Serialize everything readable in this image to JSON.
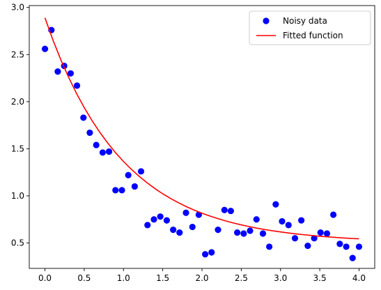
{
  "chart_data": {
    "type": "scatter",
    "title": "",
    "xlabel": "",
    "ylabel": "",
    "xlim": [
      -0.2,
      4.2
    ],
    "ylim": [
      0.23,
      3.02
    ],
    "xticks": [
      0.0,
      0.5,
      1.0,
      1.5,
      2.0,
      2.5,
      3.0,
      3.5,
      4.0
    ],
    "xtick_labels": [
      "0.0",
      "0.5",
      "1.0",
      "1.5",
      "2.0",
      "2.5",
      "3.0",
      "3.5",
      "4.0"
    ],
    "yticks": [
      0.5,
      1.0,
      1.5,
      2.0,
      2.5,
      3.0
    ],
    "ytick_labels": [
      "0.5",
      "1.0",
      "1.5",
      "2.0",
      "2.5",
      "3.0"
    ],
    "grid": false,
    "legend": "top-right",
    "series": [
      {
        "name": "Noisy data",
        "kind": "scatter",
        "color": "#0000ff",
        "x": [
          0.0,
          0.082,
          0.163,
          0.245,
          0.327,
          0.408,
          0.49,
          0.571,
          0.653,
          0.735,
          0.816,
          0.898,
          0.98,
          1.061,
          1.143,
          1.224,
          1.306,
          1.388,
          1.469,
          1.551,
          1.633,
          1.714,
          1.796,
          1.878,
          1.959,
          2.041,
          2.122,
          2.204,
          2.286,
          2.367,
          2.449,
          2.531,
          2.612,
          2.694,
          2.776,
          2.857,
          2.939,
          3.02,
          3.102,
          3.184,
          3.265,
          3.347,
          3.429,
          3.51,
          3.592,
          3.673,
          3.755,
          3.837,
          3.918,
          4.0
        ],
        "y": [
          2.56,
          2.76,
          2.32,
          2.38,
          2.3,
          2.17,
          1.83,
          1.67,
          1.54,
          1.46,
          1.47,
          1.06,
          1.06,
          1.22,
          1.1,
          1.26,
          0.69,
          0.75,
          0.78,
          0.74,
          0.64,
          0.61,
          0.82,
          0.67,
          0.8,
          0.38,
          0.4,
          0.64,
          0.85,
          0.84,
          0.61,
          0.6,
          0.63,
          0.75,
          0.6,
          0.46,
          0.91,
          0.73,
          0.69,
          0.55,
          0.74,
          0.47,
          0.55,
          0.61,
          0.6,
          0.8,
          0.49,
          0.46,
          0.34,
          0.46
        ]
      },
      {
        "name": "Fitted function",
        "kind": "line",
        "color": "#ff0000",
        "x": [
          0.0,
          0.1,
          0.2,
          0.3,
          0.4,
          0.5,
          0.6,
          0.7,
          0.8,
          0.9,
          1.0,
          1.1,
          1.2,
          1.3,
          1.4,
          1.5,
          1.6,
          1.7,
          1.8,
          1.9,
          2.0,
          2.1,
          2.2,
          2.3,
          2.4,
          2.5,
          2.6,
          2.7,
          2.8,
          2.9,
          3.0,
          3.1,
          3.2,
          3.3,
          3.4,
          3.5,
          3.6,
          3.7,
          3.8,
          3.9,
          4.0
        ],
        "y": [
          2.89,
          2.658,
          2.449,
          2.261,
          2.09,
          1.937,
          1.798,
          1.673,
          1.56,
          1.457,
          1.365,
          1.282,
          1.207,
          1.139,
          1.078,
          1.022,
          0.972,
          0.927,
          0.886,
          0.849,
          0.816,
          0.786,
          0.759,
          0.734,
          0.712,
          0.692,
          0.674,
          0.657,
          0.642,
          0.629,
          0.617,
          0.606,
          0.596,
          0.587,
          0.579,
          0.571,
          0.565,
          0.559,
          0.553,
          0.548,
          0.544
        ]
      }
    ]
  }
}
